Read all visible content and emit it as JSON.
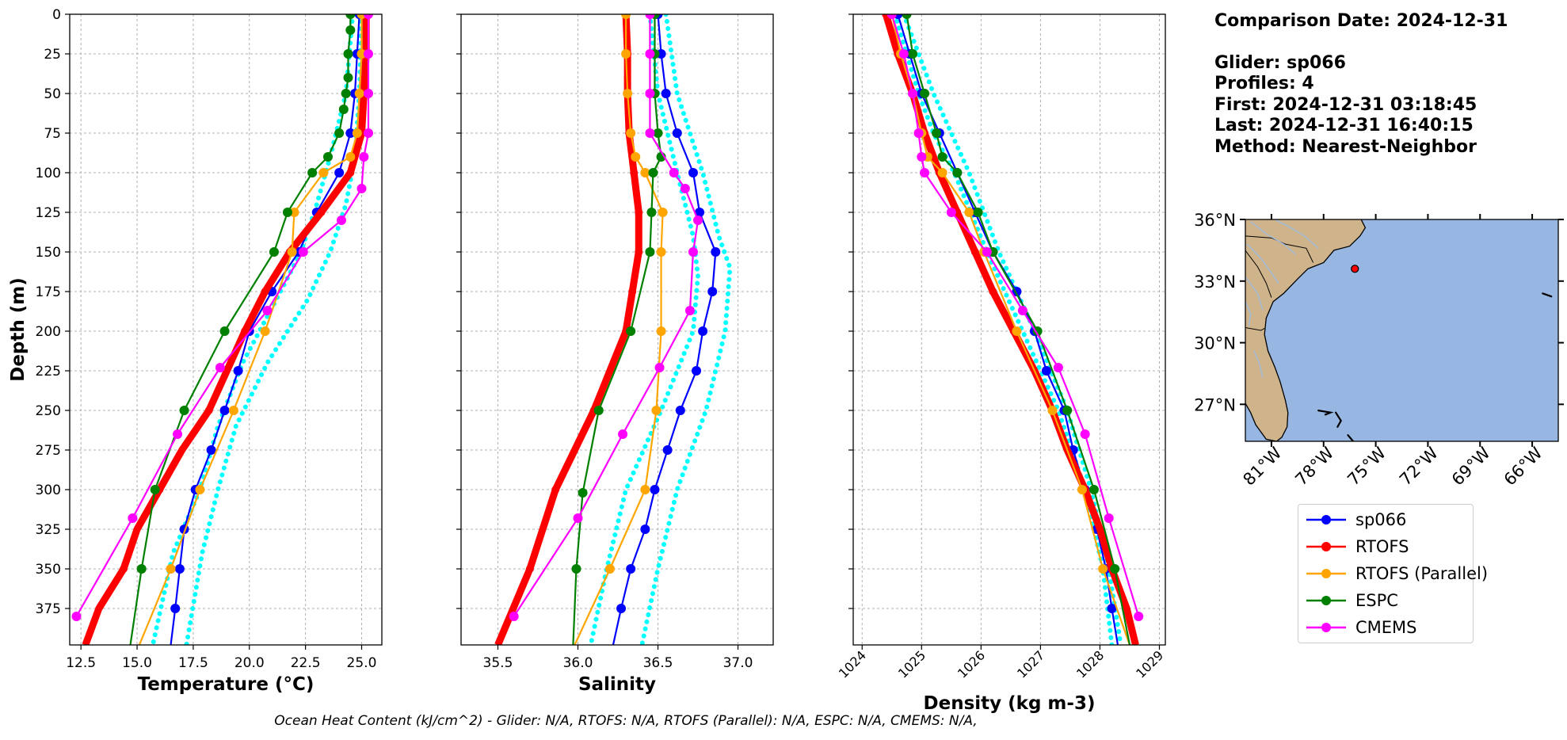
{
  "info": {
    "comparison_date": "Comparison Date: 2024-12-31",
    "glider": "Glider: sp066",
    "profiles": "Profiles: 4",
    "first": "First: 2024-12-31 03:18:45",
    "last": "Last: 2024-12-31 16:40:15",
    "method": "Method: Nearest-Neighbor"
  },
  "footer": "Ocean Heat Content (kJ/cm^2) - Glider: N/A,  RTOFS: N/A,  RTOFS (Parallel): N/A,  ESPC: N/A,  CMEMS: N/A,",
  "legend": [
    {
      "name": "sp066",
      "color": "#0000ff"
    },
    {
      "name": "RTOFS",
      "color": "#ff0000"
    },
    {
      "name": "RTOFS (Parallel)",
      "color": "#ffa500"
    },
    {
      "name": "ESPC",
      "color": "#008000"
    },
    {
      "name": "CMEMS",
      "color": "#ff00ff"
    }
  ],
  "chart_data": [
    {
      "type": "line",
      "xlabel": "Temperature (°C)",
      "ylabel": "Depth (m)",
      "xlim": [
        12.0,
        25.9
      ],
      "ylim": [
        398,
        0
      ],
      "xticks": [
        12.5,
        15.0,
        17.5,
        20.0,
        22.5,
        25.0
      ],
      "xtick_labels": [
        "12.5",
        "15.0",
        "17.5",
        "20.0",
        "22.5",
        "25.0"
      ],
      "yticks": [
        0,
        25,
        50,
        75,
        100,
        125,
        150,
        175,
        200,
        225,
        250,
        275,
        300,
        325,
        350,
        375
      ],
      "grid": true,
      "glider_spread": [
        {
          "depth": [
            0,
            50,
            90,
            120,
            150,
            180,
            220,
            260,
            300,
            340,
            398
          ],
          "values": [
            24.6,
            24.3,
            23.6,
            23.0,
            22.3,
            21.2,
            19.7,
            18.6,
            17.8,
            16.6,
            15.7
          ]
        },
        {
          "depth": [
            0,
            50,
            90,
            120,
            150,
            180,
            220,
            260,
            300,
            340,
            398
          ],
          "values": [
            25.0,
            24.9,
            24.7,
            24.3,
            23.6,
            22.6,
            20.8,
            19.4,
            18.6,
            17.9,
            17.2
          ]
        }
      ],
      "series": [
        {
          "name": "sp066",
          "color": "#0000ff",
          "depth": [
            0,
            25,
            50,
            75,
            100,
            125,
            150,
            175,
            200,
            225,
            250,
            275,
            300,
            325,
            350,
            375,
            398
          ],
          "values": [
            24.9,
            24.8,
            24.7,
            24.5,
            24.0,
            23.0,
            22.2,
            21.0,
            20.0,
            19.5,
            18.9,
            18.3,
            17.6,
            17.1,
            16.9,
            16.7,
            16.5
          ]
        },
        {
          "name": "RTOFS",
          "color": "#ff0000",
          "depth": [
            0,
            25,
            50,
            75,
            100,
            125,
            150,
            175,
            200,
            225,
            250,
            275,
            300,
            325,
            350,
            375,
            398
          ],
          "values": [
            25.2,
            25.2,
            25.1,
            25.0,
            24.5,
            23.2,
            21.8,
            20.7,
            19.8,
            19.0,
            18.2,
            17.0,
            16.0,
            15.0,
            14.4,
            13.3,
            12.7
          ],
          "marker_depth": [
            0,
            25,
            50,
            75,
            100,
            125,
            150,
            175,
            200,
            250,
            300,
            350
          ]
        },
        {
          "name": "RTOFS (Parallel)",
          "color": "#ffa500",
          "depth": [
            0,
            25,
            50,
            75,
            90,
            100,
            125,
            150,
            200,
            250,
            300,
            350,
            398
          ],
          "values": [
            25.0,
            25.0,
            24.9,
            24.8,
            24.5,
            23.3,
            22.0,
            21.9,
            20.7,
            19.3,
            17.8,
            16.5,
            15.1
          ]
        },
        {
          "name": "ESPC",
          "color": "#008000",
          "depth": [
            0,
            10,
            25,
            40,
            50,
            60,
            75,
            90,
            100,
            125,
            150,
            200,
            250,
            300,
            350,
            398
          ],
          "values": [
            24.5,
            24.5,
            24.4,
            24.4,
            24.3,
            24.2,
            24.0,
            23.5,
            22.8,
            21.7,
            21.1,
            18.9,
            17.1,
            15.8,
            15.2,
            14.7
          ]
        },
        {
          "name": "CMEMS",
          "color": "#ff00ff",
          "depth": [
            0,
            25,
            50,
            75,
            90,
            110,
            130,
            150,
            187,
            223,
            265,
            318,
            380
          ],
          "values": [
            25.3,
            25.3,
            25.3,
            25.3,
            25.1,
            25.0,
            24.1,
            22.4,
            20.8,
            18.7,
            16.8,
            14.8,
            12.3
          ]
        }
      ]
    },
    {
      "type": "line",
      "xlabel": "Salinity",
      "ylabel": "",
      "xlim": [
        35.27,
        37.22
      ],
      "ylim": [
        398,
        0
      ],
      "xticks": [
        35.5,
        36.0,
        36.5,
        37.0
      ],
      "xtick_labels": [
        "35.5",
        "36.0",
        "36.5",
        "37.0"
      ],
      "grid": true,
      "glider_spread": [
        {
          "depth": [
            0,
            50,
            100,
            140,
            165,
            200,
            250,
            300,
            350,
            398
          ],
          "values": [
            36.45,
            36.5,
            36.62,
            36.72,
            36.75,
            36.72,
            36.52,
            36.3,
            36.18,
            36.08
          ]
        },
        {
          "depth": [
            0,
            50,
            100,
            140,
            160,
            200,
            250,
            300,
            350,
            398
          ],
          "values": [
            36.55,
            36.62,
            36.78,
            36.88,
            36.95,
            36.92,
            36.8,
            36.62,
            36.5,
            36.4
          ]
        }
      ],
      "series": [
        {
          "name": "sp066",
          "color": "#0000ff",
          "depth": [
            0,
            25,
            50,
            75,
            100,
            125,
            150,
            175,
            200,
            225,
            250,
            275,
            300,
            325,
            350,
            375,
            398
          ],
          "values": [
            36.5,
            36.52,
            36.55,
            36.62,
            36.72,
            36.76,
            36.86,
            36.84,
            36.78,
            36.74,
            36.64,
            36.56,
            36.48,
            36.42,
            36.33,
            36.27,
            36.22
          ]
        },
        {
          "name": "RTOFS",
          "color": "#ff0000",
          "depth": [
            0,
            25,
            50,
            75,
            100,
            125,
            150,
            175,
            200,
            250,
            300,
            350,
            398
          ],
          "values": [
            36.3,
            36.31,
            36.31,
            36.32,
            36.35,
            36.38,
            36.38,
            36.34,
            36.3,
            36.1,
            35.86,
            35.7,
            35.5
          ],
          "marker_depth": [
            0,
            25,
            50,
            75,
            100,
            125,
            150,
            175,
            200,
            250,
            300,
            350
          ]
        },
        {
          "name": "RTOFS (Parallel)",
          "color": "#ffa500",
          "depth": [
            0,
            25,
            50,
            75,
            90,
            100,
            125,
            150,
            200,
            250,
            300,
            350,
            398
          ],
          "values": [
            36.3,
            36.3,
            36.31,
            36.33,
            36.36,
            36.42,
            36.53,
            36.52,
            36.52,
            36.49,
            36.42,
            36.2,
            35.98
          ]
        },
        {
          "name": "ESPC",
          "color": "#008000",
          "depth": [
            0,
            25,
            50,
            75,
            90,
            100,
            125,
            150,
            200,
            250,
            302,
            350,
            398
          ],
          "values": [
            36.48,
            36.48,
            36.48,
            36.5,
            36.52,
            36.47,
            36.46,
            36.45,
            36.33,
            36.13,
            36.03,
            35.99,
            35.97
          ]
        },
        {
          "name": "CMEMS",
          "color": "#ff00ff",
          "depth": [
            0,
            25,
            50,
            75,
            100,
            110,
            130,
            150,
            187,
            223,
            265,
            318,
            380
          ],
          "values": [
            36.45,
            36.45,
            36.45,
            36.45,
            36.6,
            36.67,
            36.75,
            36.72,
            36.7,
            36.51,
            36.28,
            36.0,
            35.6
          ]
        }
      ]
    },
    {
      "type": "line",
      "xlabel": "Density (kg m-3)",
      "ylabel": "",
      "xlim": [
        1023.85,
        1029.1
      ],
      "ylim": [
        398,
        0
      ],
      "xticks": [
        1024,
        1025,
        1026,
        1027,
        1028,
        1029
      ],
      "xtick_labels": [
        "1024",
        "1025",
        "1026",
        "1027",
        "1028",
        "1029"
      ],
      "grid": true,
      "glider_spread": [
        {
          "depth": [
            0,
            25,
            50,
            75,
            100,
            150,
            200,
            250,
            300,
            350,
            398
          ],
          "values": [
            1024.55,
            1024.75,
            1024.95,
            1025.2,
            1025.55,
            1026.1,
            1026.7,
            1027.3,
            1027.75,
            1028.05,
            1028.2
          ]
        },
        {
          "depth": [
            0,
            25,
            50,
            75,
            100,
            150,
            200,
            250,
            300,
            350,
            398
          ],
          "values": [
            1024.7,
            1024.95,
            1025.2,
            1025.5,
            1025.8,
            1026.3,
            1026.9,
            1027.45,
            1027.85,
            1028.15,
            1028.35
          ]
        }
      ],
      "series": [
        {
          "name": "sp066",
          "color": "#0000ff",
          "depth": [
            0,
            25,
            50,
            75,
            100,
            125,
            150,
            175,
            200,
            225,
            250,
            275,
            300,
            325,
            350,
            375,
            398
          ],
          "values": [
            1024.6,
            1024.8,
            1025.0,
            1025.3,
            1025.6,
            1025.9,
            1026.2,
            1026.6,
            1026.9,
            1027.1,
            1027.4,
            1027.55,
            1027.75,
            1027.95,
            1028.1,
            1028.2,
            1028.3
          ]
        },
        {
          "name": "RTOFS",
          "color": "#ff0000",
          "depth": [
            0,
            25,
            50,
            75,
            100,
            125,
            150,
            175,
            200,
            225,
            250,
            275,
            300,
            325,
            350,
            375,
            398
          ],
          "values": [
            1024.4,
            1024.6,
            1024.85,
            1025.05,
            1025.3,
            1025.6,
            1025.9,
            1026.2,
            1026.55,
            1026.9,
            1027.2,
            1027.45,
            1027.75,
            1028.0,
            1028.2,
            1028.45,
            1028.6
          ],
          "marker_depth": [
            0,
            25,
            50,
            75,
            100,
            125,
            150,
            175,
            200,
            250,
            300,
            350
          ]
        },
        {
          "name": "RTOFS (Parallel)",
          "color": "#ffa500",
          "depth": [
            0,
            25,
            50,
            75,
            90,
            100,
            125,
            150,
            200,
            250,
            300,
            350,
            398
          ],
          "values": [
            1024.5,
            1024.65,
            1024.85,
            1025.0,
            1025.1,
            1025.35,
            1025.8,
            1026.05,
            1026.6,
            1027.2,
            1027.7,
            1028.05,
            1028.5
          ]
        },
        {
          "name": "ESPC",
          "color": "#008000",
          "depth": [
            0,
            25,
            50,
            75,
            90,
            100,
            125,
            150,
            200,
            250,
            300,
            350,
            398
          ],
          "values": [
            1024.75,
            1024.85,
            1025.05,
            1025.25,
            1025.35,
            1025.6,
            1025.95,
            1026.2,
            1026.95,
            1027.45,
            1027.9,
            1028.25,
            1028.5
          ]
        },
        {
          "name": "CMEMS",
          "color": "#ff00ff",
          "depth": [
            0,
            25,
            50,
            75,
            90,
            100,
            125,
            150,
            187,
            223,
            265,
            318,
            380
          ],
          "values": [
            1024.5,
            1024.7,
            1024.85,
            1024.95,
            1025.0,
            1025.05,
            1025.5,
            1026.1,
            1026.7,
            1027.3,
            1027.75,
            1028.15,
            1028.65
          ]
        }
      ]
    },
    {
      "type": "scatter",
      "title": "",
      "xlim": [
        -82.5,
        -64.5
      ],
      "ylim": [
        25.2,
        36.0
      ],
      "xtick_values": [
        -81,
        -78,
        -75,
        -72,
        -69,
        -66
      ],
      "xtick_labels": [
        "81°W",
        "78°W",
        "75°W",
        "72°W",
        "69°W",
        "66°W"
      ],
      "ytick_values": [
        36,
        33,
        30,
        27
      ],
      "ytick_labels": [
        "36°N",
        "33°N",
        "30°N",
        "27°N"
      ],
      "glider_position": {
        "lon": -76.2,
        "lat": 33.6,
        "color": "#ff0000"
      },
      "land_color": "#cfb38a",
      "ocean_color": "#97b6e1"
    }
  ]
}
